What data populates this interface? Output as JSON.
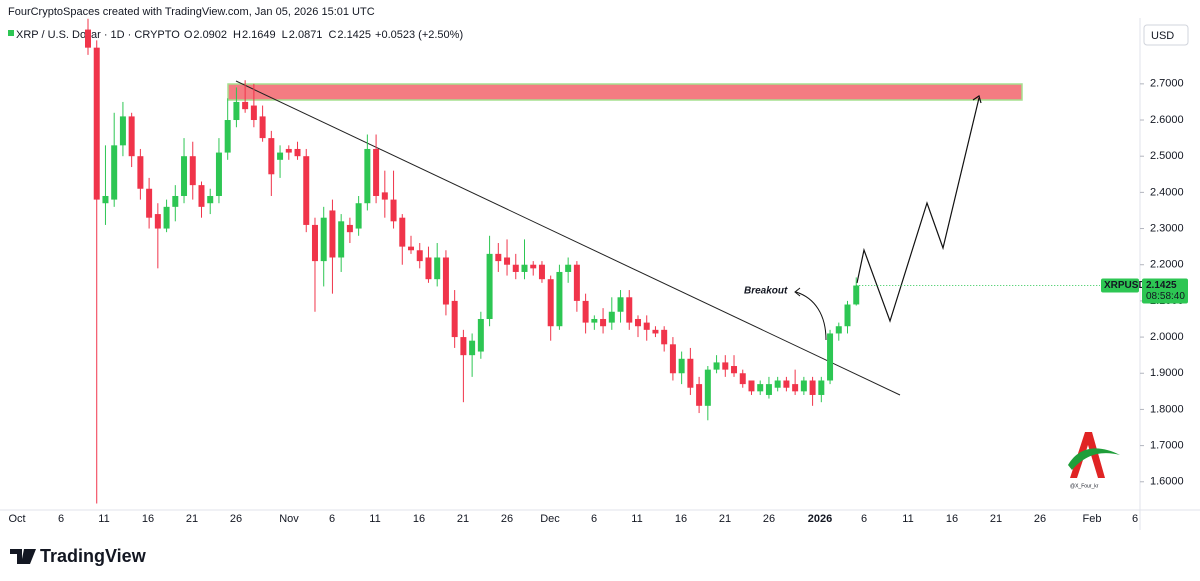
{
  "header": "FourCryptoSpaces created with TradingView.com, Jan 05, 2026 15:01 UTC",
  "currency": "USD",
  "brand": "TradingView",
  "watermark": "@X_Four_kr",
  "chart_data": {
    "type": "candlestick",
    "title": "XRP / U.S. Dollar · 1D · CRYPTO",
    "ohlc_labels": [
      "O",
      "H",
      "L",
      "C"
    ],
    "change": "+0.0523 (+2.50%)",
    "symbol": "XRPUSD",
    "countdown": "08:58:40",
    "annotation": "Breakout",
    "up_color": "#2dc653",
    "down_color": "#f0344a",
    "categories": [
      "Oct 9",
      "Oct 10",
      "Oct 11",
      "Oct 12",
      "Oct 13",
      "Oct 14",
      "Oct 15",
      "Oct 16",
      "Oct 17",
      "Oct 18",
      "Oct 19",
      "Oct 20",
      "Oct 21",
      "Oct 22",
      "Oct 23",
      "Oct 24",
      "Oct 25",
      "Oct 26",
      "Oct 27",
      "Oct 28",
      "Oct 29",
      "Oct 30",
      "Oct 31",
      "Nov 1",
      "Nov 2",
      "Nov 3",
      "Nov 4",
      "Nov 5",
      "Nov 6",
      "Nov 7",
      "Nov 8",
      "Nov 9",
      "Nov 10",
      "Nov 11",
      "Nov 12",
      "Nov 13",
      "Nov 14",
      "Nov 15",
      "Nov 16",
      "Nov 17",
      "Nov 18",
      "Nov 19",
      "Nov 20",
      "Nov 21",
      "Nov 22",
      "Nov 23",
      "Nov 24",
      "Nov 25",
      "Nov 26",
      "Nov 27",
      "Nov 28",
      "Nov 29",
      "Nov 30",
      "Dec 1",
      "Dec 2",
      "Dec 3",
      "Dec 4",
      "Dec 5",
      "Dec 6",
      "Dec 7",
      "Dec 8",
      "Dec 9",
      "Dec 10",
      "Dec 11",
      "Dec 12",
      "Dec 13",
      "Dec 14",
      "Dec 15",
      "Dec 16",
      "Dec 17",
      "Dec 18",
      "Dec 19",
      "Dec 20",
      "Dec 21",
      "Dec 22",
      "Dec 23",
      "Dec 24",
      "Dec 25",
      "Dec 26",
      "Dec 27",
      "Dec 28",
      "Dec 29",
      "Dec 30",
      "Dec 31",
      "Jan 1",
      "Jan 2",
      "Jan 3",
      "Jan 4",
      "Jan 5"
    ],
    "open": [
      2.85,
      2.8,
      2.37,
      2.38,
      2.53,
      2.61,
      2.5,
      2.41,
      2.34,
      2.3,
      2.36,
      2.39,
      2.5,
      2.42,
      2.37,
      2.39,
      2.51,
      2.6,
      2.65,
      2.64,
      2.61,
      2.55,
      2.49,
      2.52,
      2.52,
      2.5,
      2.31,
      2.21,
      2.35,
      2.22,
      2.31,
      2.3,
      2.37,
      2.52,
      2.4,
      2.38,
      2.33,
      2.25,
      2.24,
      2.22,
      2.16,
      2.22,
      2.1,
      2.0,
      1.95,
      1.96,
      2.05,
      2.23,
      2.22,
      2.2,
      2.18,
      2.2,
      2.2,
      2.16,
      2.03,
      2.18,
      2.2,
      2.1,
      2.04,
      2.05,
      2.04,
      2.07,
      2.11,
      2.05,
      2.04,
      2.02,
      2.02,
      1.98,
      1.9,
      1.94,
      1.87,
      1.81,
      1.91,
      1.93,
      1.92,
      1.9,
      1.88,
      1.85,
      1.84,
      1.86,
      1.88,
      1.87,
      1.85,
      1.88,
      1.84,
      1.88,
      2.01,
      2.03,
      2.0902
    ],
    "high": [
      2.88,
      2.82,
      2.53,
      2.62,
      2.65,
      2.62,
      2.52,
      2.44,
      2.37,
      2.38,
      2.42,
      2.55,
      2.54,
      2.43,
      2.41,
      2.55,
      2.66,
      2.69,
      2.71,
      2.7,
      2.64,
      2.57,
      2.53,
      2.53,
      2.54,
      2.52,
      2.33,
      2.36,
      2.38,
      2.34,
      2.33,
      2.39,
      2.56,
      2.56,
      2.46,
      2.46,
      2.34,
      2.28,
      2.26,
      2.25,
      2.26,
      2.24,
      2.13,
      2.02,
      2.01,
      2.07,
      2.28,
      2.26,
      2.27,
      2.23,
      2.27,
      2.21,
      2.21,
      2.17,
      2.2,
      2.22,
      2.21,
      2.12,
      2.06,
      2.08,
      2.11,
      2.13,
      2.13,
      2.06,
      2.06,
      2.03,
      2.03,
      2.0,
      1.96,
      1.97,
      1.89,
      1.92,
      1.95,
      1.95,
      1.95,
      1.91,
      1.88,
      1.88,
      1.89,
      1.89,
      1.89,
      1.91,
      1.89,
      1.89,
      1.89,
      2.02,
      2.04,
      2.1,
      2.1649
    ],
    "low": [
      2.78,
      1.54,
      2.31,
      2.36,
      2.5,
      2.47,
      2.38,
      2.3,
      2.19,
      2.29,
      2.32,
      2.37,
      2.38,
      2.33,
      2.34,
      2.37,
      2.49,
      2.58,
      2.62,
      2.58,
      2.54,
      2.39,
      2.44,
      2.49,
      2.49,
      2.29,
      2.07,
      2.14,
      2.12,
      2.18,
      2.26,
      2.28,
      2.35,
      2.37,
      2.33,
      2.3,
      2.2,
      2.23,
      2.19,
      2.15,
      2.14,
      2.06,
      1.97,
      1.82,
      1.89,
      1.94,
      2.03,
      2.18,
      2.17,
      2.16,
      2.16,
      2.17,
      2.15,
      1.99,
      2.02,
      2.15,
      2.07,
      2.01,
      2.02,
      2.01,
      2.02,
      2.04,
      2.02,
      2.0,
      1.99,
      2.0,
      1.96,
      1.88,
      1.87,
      1.84,
      1.79,
      1.77,
      1.9,
      1.89,
      1.89,
      1.86,
      1.84,
      1.84,
      1.83,
      1.85,
      1.85,
      1.84,
      1.84,
      1.81,
      1.82,
      1.87,
      1.99,
      2.01,
      2.0871
    ],
    "close": [
      2.8,
      2.38,
      2.39,
      2.53,
      2.61,
      2.5,
      2.41,
      2.33,
      2.3,
      2.36,
      2.39,
      2.5,
      2.42,
      2.36,
      2.39,
      2.51,
      2.6,
      2.65,
      2.63,
      2.6,
      2.55,
      2.45,
      2.51,
      2.51,
      2.5,
      2.31,
      2.21,
      2.33,
      2.22,
      2.32,
      2.29,
      2.37,
      2.52,
      2.39,
      2.38,
      2.32,
      2.25,
      2.24,
      2.21,
      2.16,
      2.22,
      2.09,
      2.0,
      1.95,
      1.99,
      2.05,
      2.23,
      2.21,
      2.2,
      2.18,
      2.2,
      2.19,
      2.16,
      2.03,
      2.18,
      2.2,
      2.1,
      2.04,
      2.05,
      2.03,
      2.07,
      2.11,
      2.04,
      2.03,
      2.02,
      2.01,
      1.98,
      1.9,
      1.94,
      1.86,
      1.81,
      1.91,
      1.93,
      1.91,
      1.9,
      1.87,
      1.85,
      1.87,
      1.87,
      1.88,
      1.86,
      1.85,
      1.88,
      1.84,
      1.88,
      2.01,
      2.03,
      2.09,
      2.1425
    ],
    "ylim": [
      1.522,
      2.882
    ],
    "yticks": [
      {
        "value": 2.7,
        "label": "2.7000"
      },
      {
        "value": 2.6,
        "label": "2.6000"
      },
      {
        "value": 2.5,
        "label": "2.5000"
      },
      {
        "value": 2.4,
        "label": "2.4000"
      },
      {
        "value": 2.3,
        "label": "2.3000"
      },
      {
        "value": 2.2,
        "label": "2.2000"
      },
      {
        "value": 2.1,
        "label": "2.1000"
      },
      {
        "value": 2.0,
        "label": "2.0000"
      },
      {
        "value": 1.9,
        "label": "1.9000"
      },
      {
        "value": 1.8,
        "label": "1.8000"
      },
      {
        "value": 1.7,
        "label": "1.7000"
      },
      {
        "value": 1.6,
        "label": "1.6000"
      }
    ],
    "xticks": [
      "Oct",
      "6",
      "11",
      "16",
      "21",
      "26",
      "Nov",
      "6",
      "11",
      "16",
      "21",
      "26",
      "Dec",
      "6",
      "11",
      "16",
      "21",
      "26",
      "2026",
      "6",
      "11",
      "16",
      "21",
      "26",
      "Feb",
      "6"
    ]
  }
}
